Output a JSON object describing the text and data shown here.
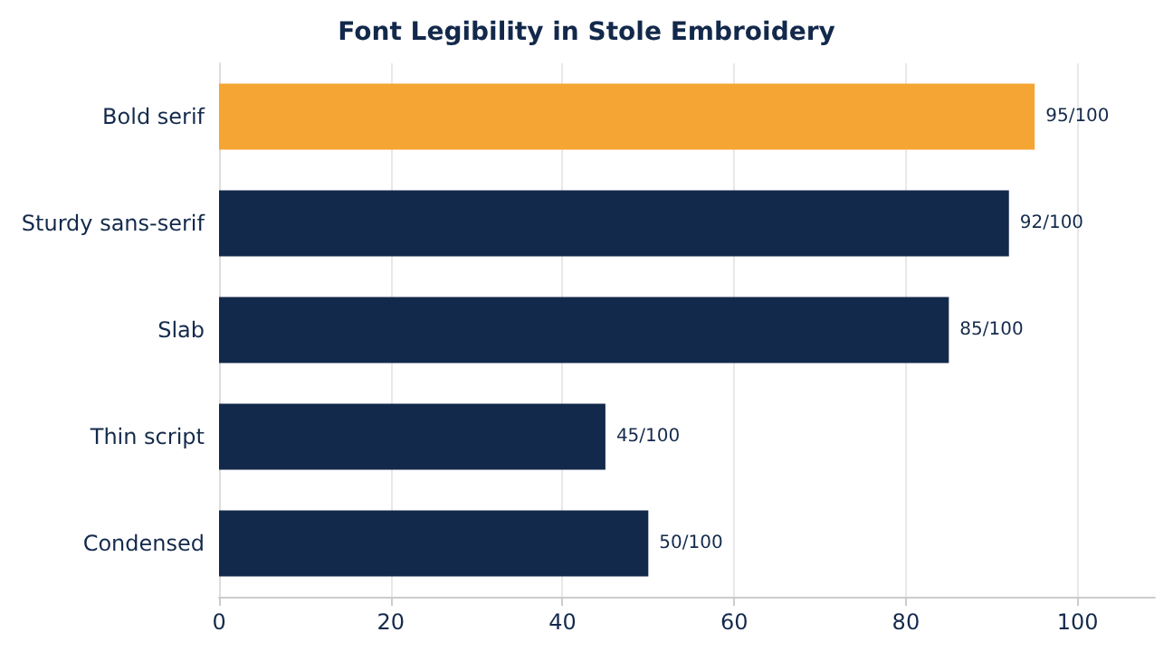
{
  "chart_data": {
    "type": "bar",
    "orientation": "horizontal",
    "title": "Font Legibility in Stole Embroidery",
    "categories": [
      "Bold serif",
      "Sturdy sans-serif",
      "Slab",
      "Thin script",
      "Condensed"
    ],
    "values": [
      95,
      92,
      85,
      45,
      50
    ],
    "colors": [
      "#f4a533",
      "#13294b",
      "#13294b",
      "#13294b",
      "#13294b"
    ],
    "value_labels": [
      "95/100",
      "92/100",
      "85/100",
      "45/100",
      "50/100"
    ],
    "xlim": [
      0,
      109
    ],
    "xticks": [
      0,
      20,
      40,
      60,
      80,
      100
    ],
    "grid": "x"
  }
}
